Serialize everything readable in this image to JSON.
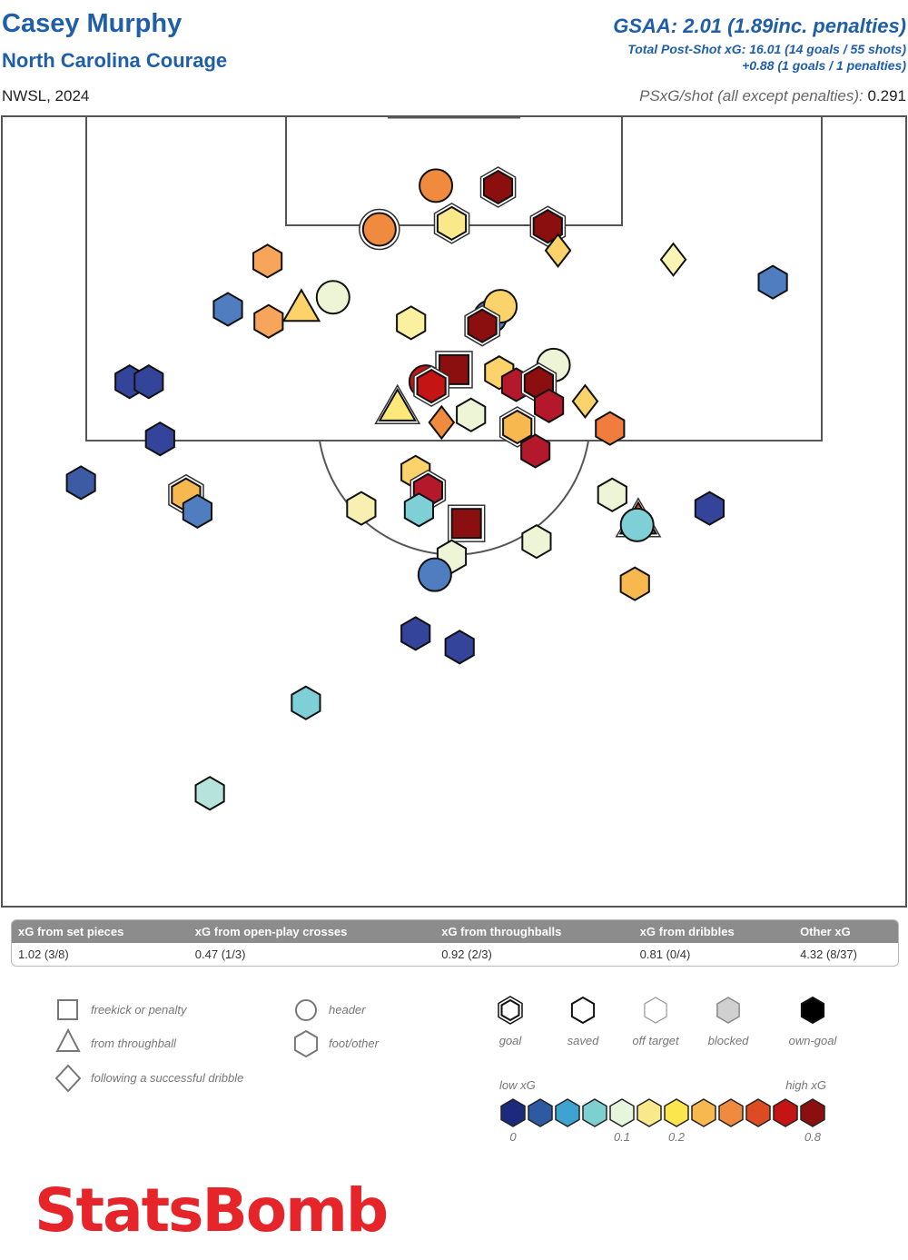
{
  "header": {
    "player": "Casey Murphy",
    "team": "North Carolina Courage",
    "competition": "NWSL, 2024",
    "gsaa": "GSAA: 2.01 (1.89inc. penalties)",
    "psxg_total": "Total Post-Shot xG: 16.01 (14 goals / 55 shots)",
    "psxg_penalties": "+0.88 (1 goals / 1 penalties)",
    "psxg_per_shot_label": "PSxG/shot (all except penalties):",
    "psxg_per_shot_value": " 0.291"
  },
  "summary": {
    "headers": [
      "xG from set pieces",
      "xG from open-play crosses",
      "xG from throughballs",
      "xG from dribbles",
      "Other xG"
    ],
    "values": [
      "1.02 (3/8)",
      "0.47 (1/3)",
      "0.92 (2/3)",
      "0.81 (0/4)",
      "4.32 (8/37)"
    ]
  },
  "legend": {
    "shape_items": [
      {
        "shape": "square",
        "label": "freekick or penalty"
      },
      {
        "shape": "triangle",
        "label": "from throughball"
      },
      {
        "shape": "diamond",
        "label": "following a successful dribble"
      },
      {
        "shape": "circle",
        "label": "header"
      },
      {
        "shape": "hexagon",
        "label": "foot/other"
      }
    ],
    "outcome_items": [
      {
        "style": "goal",
        "label": "goal"
      },
      {
        "style": "saved",
        "label": "saved"
      },
      {
        "style": "off",
        "label": "off target"
      },
      {
        "style": "blocked",
        "label": "blocked"
      },
      {
        "style": "own",
        "label": "own-goal"
      }
    ],
    "scale_low": "low xG",
    "scale_high": "high xG",
    "scale_ticks": [
      "0",
      "0.1",
      "0.2",
      "0.8"
    ],
    "scale_colors": [
      "#1c2a7e",
      "#2d5aa0",
      "#3fa3d1",
      "#7ecfd0",
      "#e6f5dd",
      "#fae98a",
      "#fce64e",
      "#f6b84f",
      "#ef8a3e",
      "#dd4b22",
      "#c41414",
      "#8b0f0f"
    ]
  },
  "logo_text": "StatsBomb",
  "chart_data": {
    "type": "scatter",
    "title": "",
    "xlabel": "",
    "ylabel": "",
    "coordinate_note": "x = across pitch width (0-80, left touchline = 0), y = distance from goal line (0-60)",
    "xlim": [
      0,
      80
    ],
    "ylim": [
      0,
      60
    ],
    "shots": [
      {
        "x": 38.4,
        "y": 4.6,
        "shape": "circle",
        "outcome": "saved",
        "color": "#ef8a3e"
      },
      {
        "x": 43.9,
        "y": 4.7,
        "shape": "hexagon",
        "outcome": "goal",
        "color": "#8b0f0f"
      },
      {
        "x": 33.4,
        "y": 7.5,
        "shape": "circle",
        "outcome": "goal",
        "color": "#ef8a3e"
      },
      {
        "x": 39.8,
        "y": 7.1,
        "shape": "hexagon",
        "outcome": "goal",
        "color": "#fae98a"
      },
      {
        "x": 48.3,
        "y": 7.3,
        "shape": "hexagon",
        "outcome": "goal",
        "color": "#8b0f0f"
      },
      {
        "x": 49.2,
        "y": 8.9,
        "shape": "diamond",
        "outcome": "saved",
        "color": "#fcd26b"
      },
      {
        "x": 59.4,
        "y": 9.5,
        "shape": "diamond",
        "outcome": "saved",
        "color": "#fbf5b5"
      },
      {
        "x": 23.5,
        "y": 9.6,
        "shape": "hexagon",
        "outcome": "saved",
        "color": "#f6a55a"
      },
      {
        "x": 68.2,
        "y": 11.0,
        "shape": "hexagon",
        "outcome": "saved",
        "color": "#4f7dbf"
      },
      {
        "x": 29.3,
        "y": 12.0,
        "shape": "circle",
        "outcome": "off",
        "color": "#eef5d6"
      },
      {
        "x": 26.5,
        "y": 12.7,
        "shape": "triangle",
        "outcome": "saved",
        "color": "#fcd26b"
      },
      {
        "x": 20.0,
        "y": 12.8,
        "shape": "hexagon",
        "outcome": "saved",
        "color": "#4f7dbf"
      },
      {
        "x": 23.6,
        "y": 13.6,
        "shape": "hexagon",
        "outcome": "saved",
        "color": "#f6a55a"
      },
      {
        "x": 36.2,
        "y": 13.7,
        "shape": "hexagon",
        "outcome": "saved",
        "color": "#fbf0a0"
      },
      {
        "x": 43.2,
        "y": 13.3,
        "shape": "circle",
        "outcome": "saved",
        "color": "#4f7dbf"
      },
      {
        "x": 44.1,
        "y": 12.6,
        "shape": "circle",
        "outcome": "saved",
        "color": "#fcd26b"
      },
      {
        "x": 42.5,
        "y": 13.9,
        "shape": "hexagon",
        "outcome": "goal",
        "color": "#8b0f0f"
      },
      {
        "x": 48.8,
        "y": 16.5,
        "shape": "circle",
        "outcome": "off",
        "color": "#eef5d6"
      },
      {
        "x": 40.0,
        "y": 16.8,
        "shape": "square",
        "outcome": "goal",
        "color": "#8b0f0f"
      },
      {
        "x": 44.0,
        "y": 17.0,
        "shape": "hexagon",
        "outcome": "saved",
        "color": "#fcd26b"
      },
      {
        "x": 11.3,
        "y": 17.6,
        "shape": "hexagon",
        "outcome": "saved",
        "color": "#34449a"
      },
      {
        "x": 13.0,
        "y": 17.6,
        "shape": "hexagon",
        "outcome": "saved",
        "color": "#34449a"
      },
      {
        "x": 37.5,
        "y": 17.6,
        "shape": "circle",
        "outcome": "saved",
        "color": "#c41414"
      },
      {
        "x": 38.0,
        "y": 17.9,
        "shape": "hexagon",
        "outcome": "goal",
        "color": "#c41414"
      },
      {
        "x": 45.5,
        "y": 17.8,
        "shape": "hexagon",
        "outcome": "saved",
        "color": "#b3192a"
      },
      {
        "x": 47.5,
        "y": 17.7,
        "shape": "hexagon",
        "outcome": "goal",
        "color": "#8b0f0f"
      },
      {
        "x": 48.4,
        "y": 19.2,
        "shape": "hexagon",
        "outcome": "saved",
        "color": "#b3192a"
      },
      {
        "x": 35.0,
        "y": 19.3,
        "shape": "triangle",
        "outcome": "goal",
        "color": "#fce97a"
      },
      {
        "x": 51.6,
        "y": 18.9,
        "shape": "diamond",
        "outcome": "saved",
        "color": "#fcd26b"
      },
      {
        "x": 38.9,
        "y": 20.3,
        "shape": "diamond",
        "outcome": "saved",
        "color": "#ef8a3e"
      },
      {
        "x": 41.5,
        "y": 19.8,
        "shape": "hexagon",
        "outcome": "saved",
        "color": "#eef5d6"
      },
      {
        "x": 45.6,
        "y": 20.6,
        "shape": "hexagon",
        "outcome": "goal",
        "color": "#f6b84f"
      },
      {
        "x": 53.8,
        "y": 20.7,
        "shape": "hexagon",
        "outcome": "saved",
        "color": "#ef7d3e"
      },
      {
        "x": 14.0,
        "y": 21.4,
        "shape": "hexagon",
        "outcome": "saved",
        "color": "#34449a"
      },
      {
        "x": 47.2,
        "y": 22.2,
        "shape": "hexagon",
        "outcome": "saved",
        "color": "#b3192a"
      },
      {
        "x": 7.0,
        "y": 24.3,
        "shape": "hexagon",
        "outcome": "saved",
        "color": "#3d5aa5"
      },
      {
        "x": 36.6,
        "y": 23.6,
        "shape": "hexagon",
        "outcome": "saved",
        "color": "#fcd26b"
      },
      {
        "x": 37.7,
        "y": 24.8,
        "shape": "hexagon",
        "outcome": "goal",
        "color": "#b3192a"
      },
      {
        "x": 16.3,
        "y": 25.1,
        "shape": "hexagon",
        "outcome": "goal",
        "color": "#f6b84f"
      },
      {
        "x": 17.3,
        "y": 26.2,
        "shape": "hexagon",
        "outcome": "saved",
        "color": "#4f7dbf"
      },
      {
        "x": 54.0,
        "y": 25.1,
        "shape": "hexagon",
        "outcome": "saved",
        "color": "#eef5d6"
      },
      {
        "x": 31.8,
        "y": 26.0,
        "shape": "hexagon",
        "outcome": "saved",
        "color": "#f8f0b0"
      },
      {
        "x": 36.9,
        "y": 26.1,
        "shape": "hexagon",
        "outcome": "saved",
        "color": "#7ecfd6"
      },
      {
        "x": 41.1,
        "y": 27.0,
        "shape": "square",
        "outcome": "goal",
        "color": "#8b0f0f"
      },
      {
        "x": 62.6,
        "y": 26.0,
        "shape": "hexagon",
        "outcome": "saved",
        "color": "#34449a"
      },
      {
        "x": 56.3,
        "y": 26.8,
        "shape": "triangle",
        "outcome": "goal",
        "color": "#dd4b22"
      },
      {
        "x": 56.2,
        "y": 27.1,
        "shape": "circle",
        "outcome": "saved",
        "color": "#7ecfd6"
      },
      {
        "x": 47.3,
        "y": 28.2,
        "shape": "hexagon",
        "outcome": "saved",
        "color": "#eef5d6"
      },
      {
        "x": 39.8,
        "y": 29.2,
        "shape": "hexagon",
        "outcome": "saved",
        "color": "#eef5d6"
      },
      {
        "x": 38.3,
        "y": 30.4,
        "shape": "circle",
        "outcome": "saved",
        "color": "#4f7dbf"
      },
      {
        "x": 56.0,
        "y": 31.0,
        "shape": "hexagon",
        "outcome": "saved",
        "color": "#f6b84f"
      },
      {
        "x": 36.6,
        "y": 34.3,
        "shape": "hexagon",
        "outcome": "saved",
        "color": "#34449a"
      },
      {
        "x": 40.5,
        "y": 35.2,
        "shape": "hexagon",
        "outcome": "saved",
        "color": "#34449a"
      },
      {
        "x": 26.9,
        "y": 38.9,
        "shape": "hexagon",
        "outcome": "saved",
        "color": "#7ecfd6"
      },
      {
        "x": 18.4,
        "y": 44.9,
        "shape": "hexagon",
        "outcome": "saved",
        "color": "#b6e3db"
      }
    ]
  }
}
